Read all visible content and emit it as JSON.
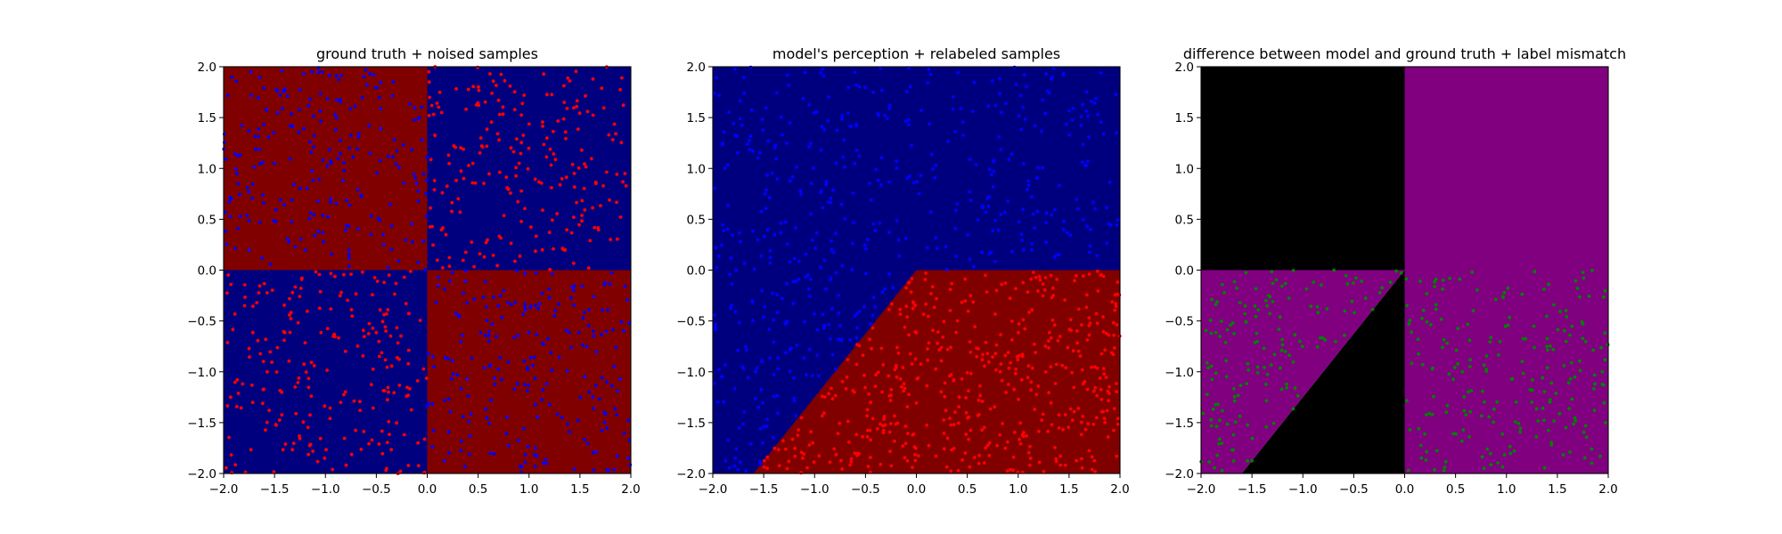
{
  "chart_data": [
    {
      "type": "scatter",
      "title": "ground truth + noised samples",
      "xlabel": "",
      "ylabel": "",
      "xlim": [
        -2.0,
        2.0
      ],
      "ylim": [
        -2.0,
        2.0
      ],
      "xticks": [
        "−2.0",
        "−1.5",
        "−1.0",
        "−0.5",
        "0.0",
        "0.5",
        "1.0",
        "1.5",
        "2.0"
      ],
      "yticks": [
        "−2.0",
        "−1.5",
        "−1.0",
        "−0.5",
        "0.0",
        "0.5",
        "1.0",
        "1.5",
        "2.0"
      ],
      "grid": false,
      "background": {
        "description": "quadrant checkerboard: x<0,y>0 and x>0,y<0 are red; other quadrants blue",
        "regions": [
          {
            "x": [
              -2,
              0
            ],
            "y": [
              0,
              2
            ],
            "color": "#800000"
          },
          {
            "x": [
              0,
              2
            ],
            "y": [
              0,
              2
            ],
            "color": "#00007f"
          },
          {
            "x": [
              -2,
              0
            ],
            "y": [
              -2,
              0
            ],
            "color": "#00007f"
          },
          {
            "x": [
              0,
              2
            ],
            "y": [
              -2,
              0
            ],
            "color": "#800000"
          }
        ]
      },
      "series": [
        {
          "color": "#0000ff",
          "class_region": "x<0,y>0 and x>0,y<0",
          "count": 450
        },
        {
          "color": "#ff0000",
          "class_region": "x>0,y>0 and x<0,y<0",
          "count": 450
        }
      ]
    },
    {
      "type": "scatter",
      "title": "model's perception + relabeled samples",
      "xlabel": "",
      "ylabel": "",
      "xlim": [
        -2.0,
        2.0
      ],
      "ylim": [
        -2.0,
        2.0
      ],
      "xticks": [
        "−2.0",
        "−1.5",
        "−1.0",
        "−0.5",
        "0.0",
        "0.5",
        "1.0",
        "1.5",
        "2.0"
      ],
      "yticks": [
        "−2.0",
        "−1.5",
        "−1.0",
        "−0.5",
        "0.0",
        "0.5",
        "1.0",
        "1.5",
        "2.0"
      ],
      "grid": false,
      "background": {
        "description": "red region below y=0 bounded on the left by line from (-1.6,-2) to (0,0); blue elsewhere",
        "regions": [
          {
            "polygon": [
              [
                -1.6,
                -2
              ],
              [
                0,
                0
              ],
              [
                2,
                0
              ],
              [
                2,
                -2
              ]
            ],
            "color": "#800000"
          },
          {
            "rest": true,
            "color": "#00007f"
          }
        ]
      },
      "series": [
        {
          "color": "#0000ff",
          "class_region": "model blue region",
          "count": 500
        },
        {
          "color": "#ff0000",
          "class_region": "model red region",
          "count": 500
        }
      ]
    },
    {
      "type": "scatter",
      "title": "difference between model and ground truth + label mismatch",
      "xlabel": "",
      "ylabel": "",
      "xlim": [
        -2.0,
        2.0
      ],
      "ylim": [
        -2.0,
        2.0
      ],
      "xticks": [
        "−2.0",
        "−1.5",
        "−1.0",
        "−0.5",
        "0.0",
        "0.5",
        "1.0",
        "1.5",
        "2.0"
      ],
      "yticks": [
        "−2.0",
        "−1.5",
        "−1.0",
        "−0.5",
        "0.0",
        "0.5",
        "1.0",
        "1.5",
        "2.0"
      ],
      "grid": false,
      "background": {
        "description": "purple where model differs from ground truth, black where it agrees",
        "regions": [
          {
            "x": [
              -2,
              0
            ],
            "y": [
              0,
              2
            ],
            "color": "#000000"
          },
          {
            "x": [
              0,
              2
            ],
            "y": [
              0,
              2
            ],
            "color": "#800080"
          },
          {
            "polygon": [
              [
                -2,
                -2
              ],
              [
                -1.6,
                -2
              ],
              [
                0,
                0
              ],
              [
                -2,
                0
              ]
            ],
            "color": "#800080"
          },
          {
            "polygon": [
              [
                -1.6,
                -2
              ],
              [
                0,
                -2
              ],
              [
                0,
                0
              ]
            ],
            "color": "#000000"
          },
          {
            "x": [
              0,
              2
            ],
            "y": [
              -2,
              0
            ],
            "color": "#800080"
          }
        ]
      },
      "series": [
        {
          "color": "#008000",
          "class_region": "mismatch samples (y<0)",
          "count": 360
        }
      ]
    }
  ]
}
